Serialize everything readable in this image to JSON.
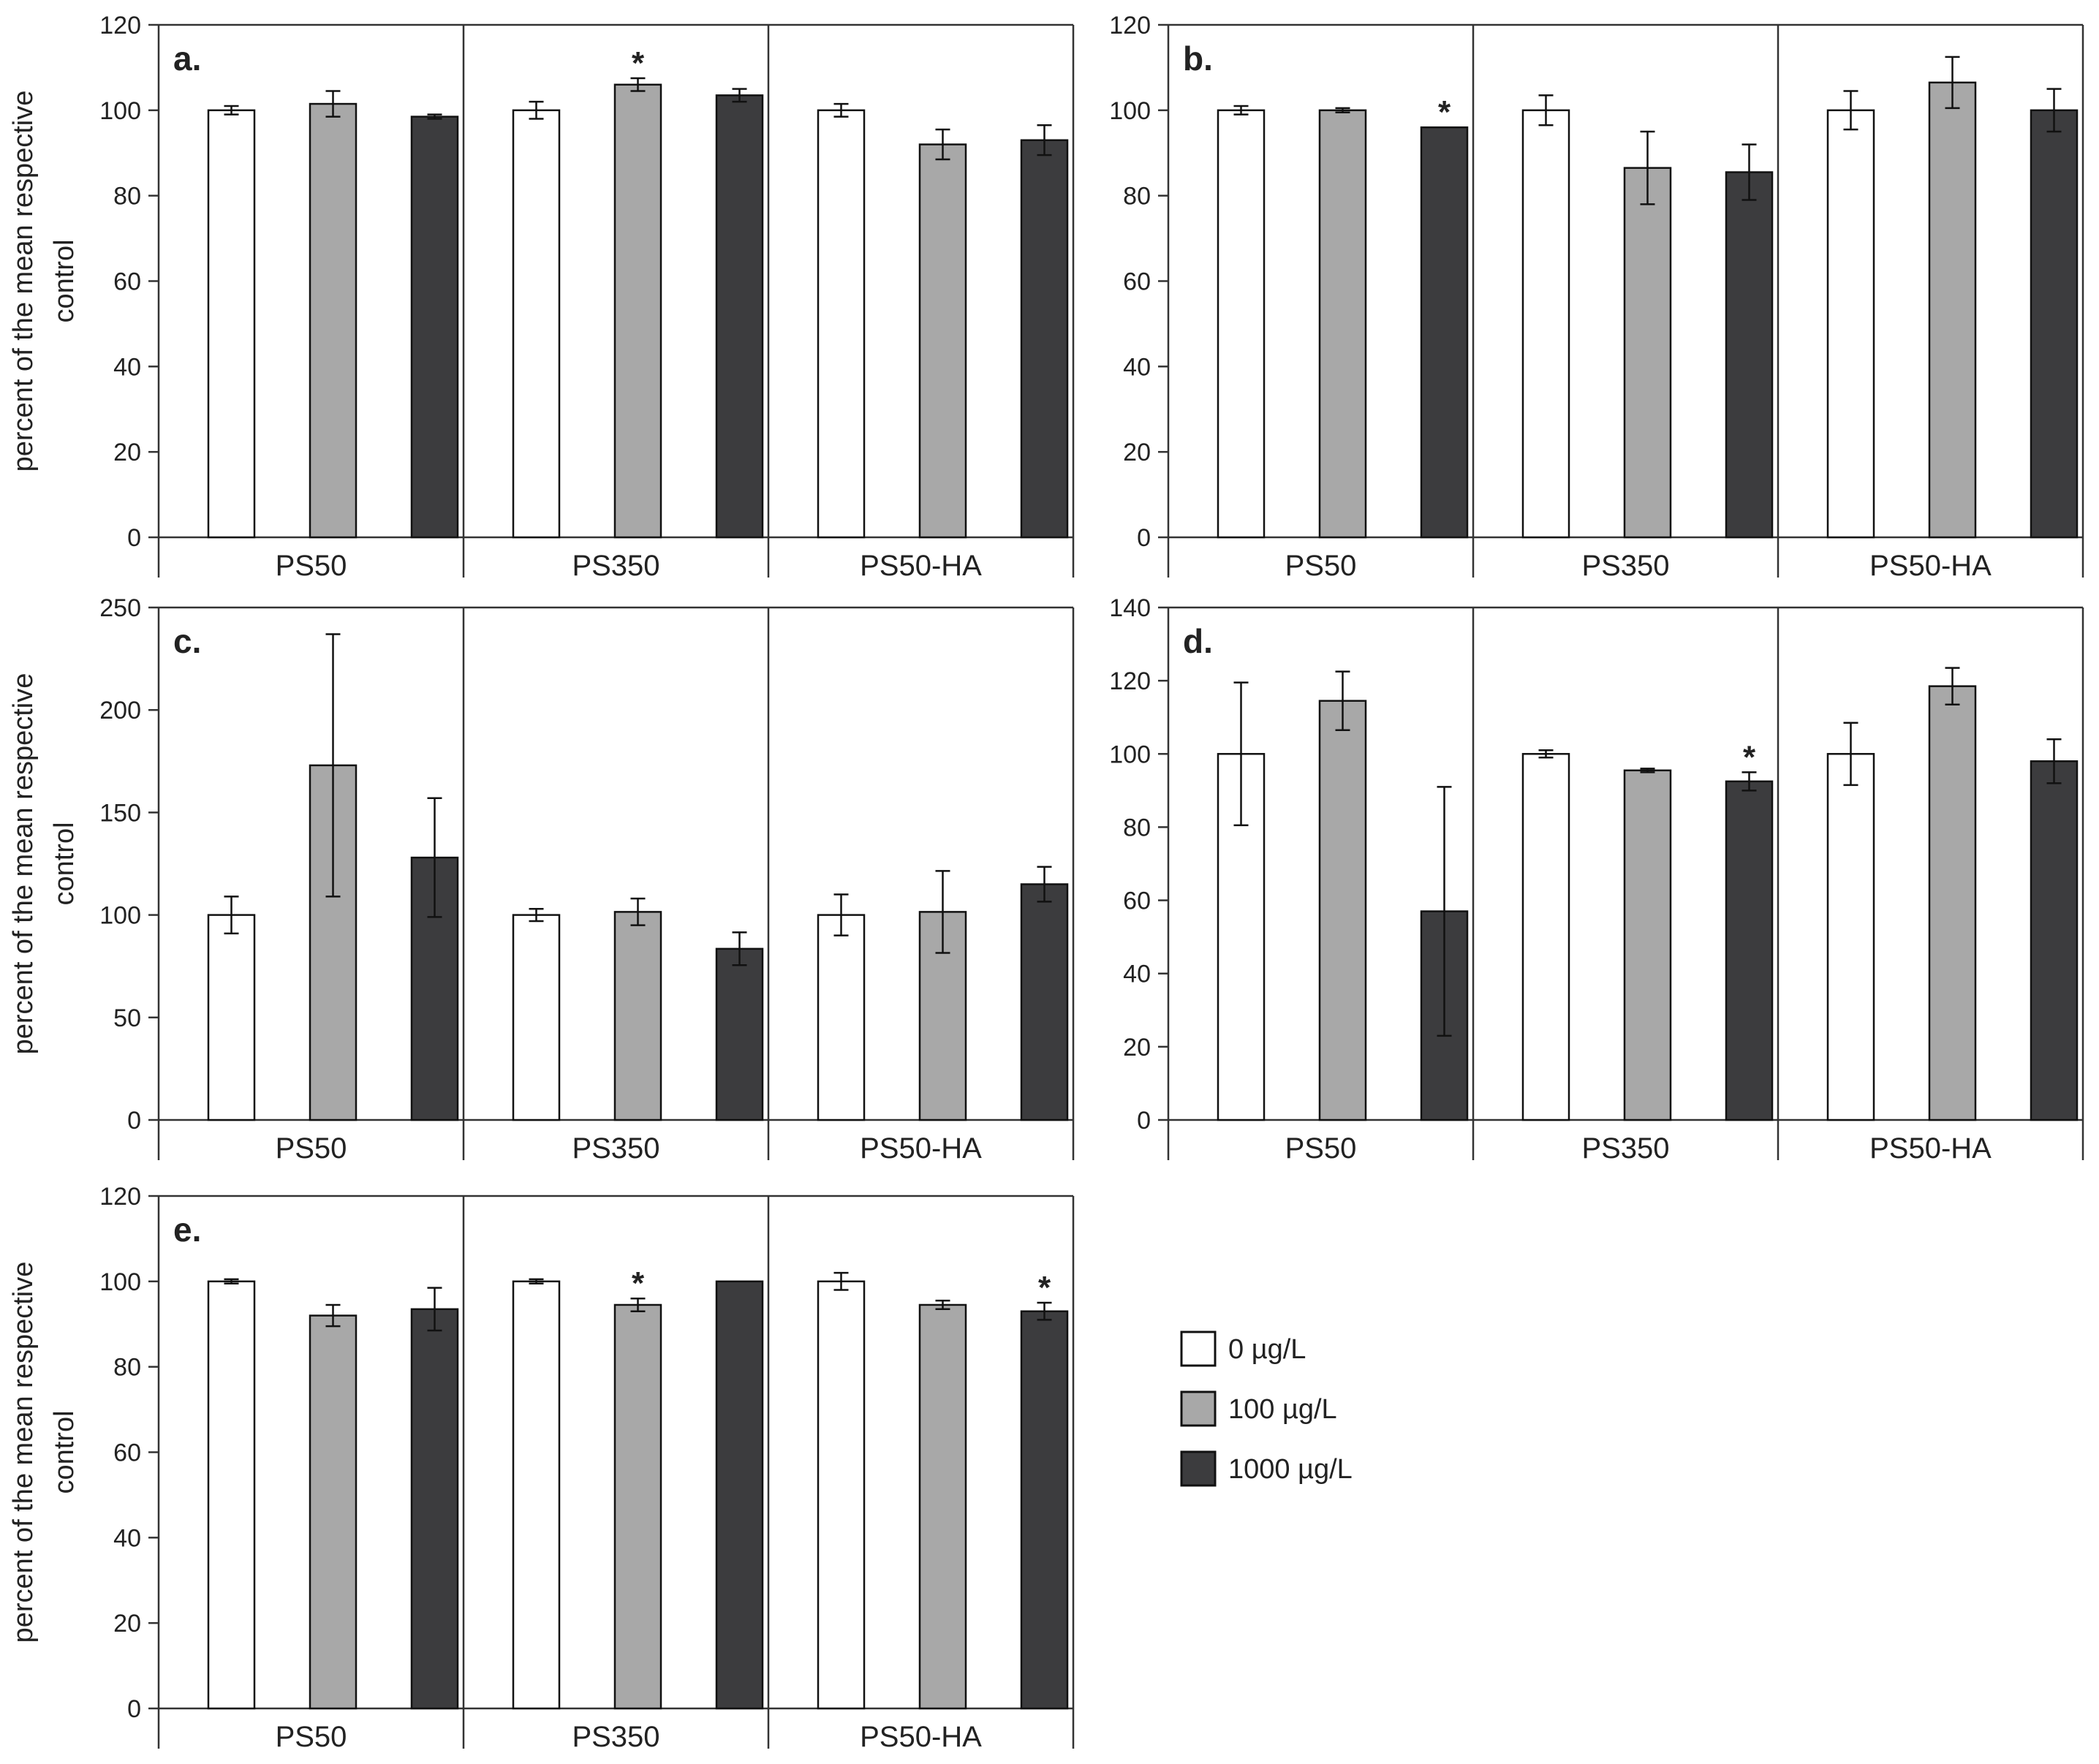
{
  "chart_data": [
    {
      "type": "bar",
      "panel": "a.",
      "ylabel": "percent of the mean respective control",
      "ylim": [
        0,
        120
      ],
      "yticks": [
        0,
        20,
        40,
        60,
        80,
        100,
        120
      ],
      "categories": [
        "PS50",
        "PS350",
        "PS50-HA"
      ],
      "series": [
        {
          "name": "0 µg/L",
          "values": [
            100,
            100,
            100
          ],
          "errors": [
            1,
            2,
            1.5
          ]
        },
        {
          "name": "100 µg/L",
          "values": [
            101.5,
            106,
            92
          ],
          "errors": [
            3,
            1.5,
            3.5
          ]
        },
        {
          "name": "1000 µg/L",
          "values": [
            98.5,
            103.5,
            93
          ],
          "errors": [
            0.5,
            1.5,
            3.5
          ]
        }
      ],
      "annotations": [
        {
          "category": "PS350",
          "series": "100 µg/L",
          "text": "*"
        }
      ]
    },
    {
      "type": "bar",
      "panel": "b.",
      "ylabel": "",
      "ylim": [
        0,
        120
      ],
      "yticks": [
        0,
        20,
        40,
        60,
        80,
        100,
        120
      ],
      "categories": [
        "PS50",
        "PS350",
        "PS50-HA"
      ],
      "series": [
        {
          "name": "0 µg/L",
          "values": [
            100,
            100,
            100
          ],
          "errors": [
            1,
            3.5,
            4.5
          ]
        },
        {
          "name": "100 µg/L",
          "values": [
            100,
            86.5,
            106.5
          ],
          "errors": [
            0.5,
            8.5,
            6
          ]
        },
        {
          "name": "1000 µg/L",
          "values": [
            96,
            85.5,
            100
          ],
          "errors": [
            0,
            6.5,
            5
          ]
        }
      ],
      "annotations": [
        {
          "category": "PS50",
          "series": "1000 µg/L",
          "text": "*"
        }
      ]
    },
    {
      "type": "bar",
      "panel": "c.",
      "ylabel": "percent of the mean respective control",
      "ylim": [
        0,
        250
      ],
      "yticks": [
        0,
        50,
        100,
        150,
        200,
        250
      ],
      "categories": [
        "PS50",
        "PS350",
        "PS50-HA"
      ],
      "series": [
        {
          "name": "0 µg/L",
          "values": [
            100,
            100,
            100
          ],
          "errors": [
            9,
            3,
            10
          ]
        },
        {
          "name": "100 µg/L",
          "values": [
            173,
            101.5,
            101.5
          ],
          "errors": [
            64,
            6.5,
            20
          ]
        },
        {
          "name": "1000 µg/L",
          "values": [
            128,
            83.5,
            115
          ],
          "errors": [
            29,
            8,
            8.5
          ]
        }
      ],
      "annotations": []
    },
    {
      "type": "bar",
      "panel": "d.",
      "ylabel": "",
      "ylim": [
        0,
        140
      ],
      "yticks": [
        0,
        20,
        40,
        60,
        80,
        100,
        120,
        140
      ],
      "categories": [
        "PS50",
        "PS350",
        "PS50-HA"
      ],
      "series": [
        {
          "name": "0 µg/L",
          "values": [
            100,
            100,
            100
          ],
          "errors": [
            19.5,
            1,
            8.5
          ]
        },
        {
          "name": "100 µg/L",
          "values": [
            114.5,
            95.5,
            118.5
          ],
          "errors": [
            8,
            0.5,
            5
          ]
        },
        {
          "name": "1000 µg/L",
          "values": [
            57,
            92.5,
            98
          ],
          "errors": [
            34,
            2.5,
            6
          ]
        }
      ],
      "annotations": [
        {
          "category": "PS350",
          "series": "1000 µg/L",
          "text": "*"
        }
      ]
    },
    {
      "type": "bar",
      "panel": "e.",
      "ylabel": "percent of the mean respective control",
      "ylim": [
        0,
        120
      ],
      "yticks": [
        0,
        20,
        40,
        60,
        80,
        100,
        120
      ],
      "categories": [
        "PS50",
        "PS350",
        "PS50-HA"
      ],
      "series": [
        {
          "name": "0 µg/L",
          "values": [
            100,
            100,
            100
          ],
          "errors": [
            0.5,
            0.5,
            2
          ]
        },
        {
          "name": "100 µg/L",
          "values": [
            92,
            94.5,
            94.5
          ],
          "errors": [
            2.5,
            1.5,
            1
          ]
        },
        {
          "name": "1000 µg/L",
          "values": [
            93.5,
            100,
            93
          ],
          "errors": [
            5,
            0,
            2
          ]
        }
      ],
      "annotations": [
        {
          "category": "PS350",
          "series": "100 µg/L",
          "text": "*"
        },
        {
          "category": "PS50-HA",
          "series": "1000 µg/L",
          "text": "*"
        }
      ]
    }
  ],
  "legend": {
    "entries": [
      {
        "label": "0 µg/L",
        "color": "#ffffff"
      },
      {
        "label": "100 µg/L",
        "color": "#a8a8a8"
      },
      {
        "label": "1000 µg/L",
        "color": "#3c3c3e"
      }
    ]
  },
  "colors": {
    "axis": "#333333",
    "bar_stroke": "#111111"
  }
}
